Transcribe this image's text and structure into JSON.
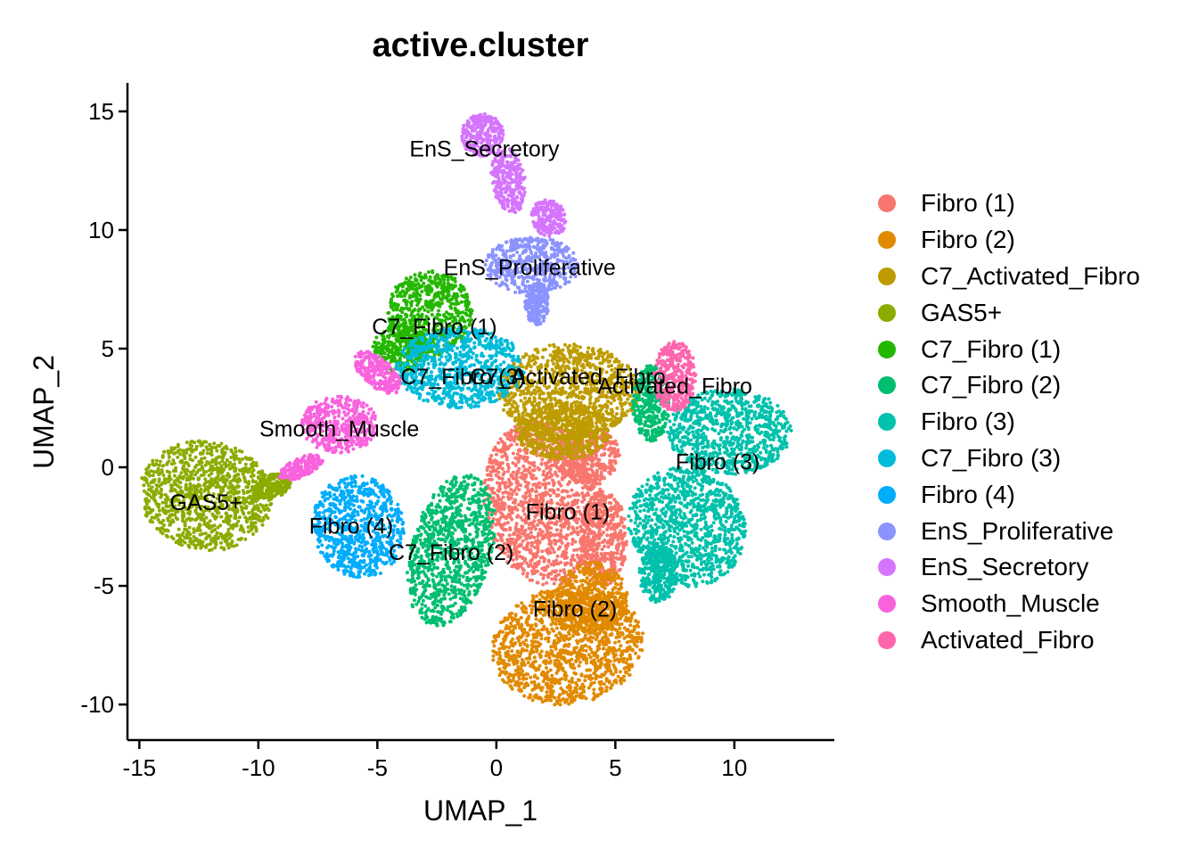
{
  "chart_data": {
    "type": "scatter",
    "title": "active.cluster",
    "xlabel": "UMAP_1",
    "ylabel": "UMAP_2",
    "xlim": [
      -15.5,
      14.2
    ],
    "ylim": [
      -11.5,
      16.2
    ],
    "xticks": [
      -15,
      -10,
      -5,
      0,
      5,
      10
    ],
    "yticks": [
      -10,
      -5,
      0,
      5,
      10,
      15
    ],
    "grid": false,
    "legend_position": "right",
    "series": [
      {
        "name": "Fibro (1)",
        "color": "#F8766D",
        "label_pos": [
          3.0,
          -2.2
        ],
        "regions": [
          [
            2.0,
            -1.5,
            2.5,
            3.5,
            10
          ],
          [
            3.8,
            0.5,
            1.4,
            1.2,
            0
          ],
          [
            4.5,
            -3.0,
            1.0,
            2.0,
            0
          ]
        ]
      },
      {
        "name": "Fibro (2)",
        "color": "#E18A00",
        "label_pos": [
          3.3,
          -6.3
        ],
        "regions": [
          [
            3.0,
            -7.5,
            3.2,
            2.5,
            10
          ],
          [
            4.0,
            -5.5,
            1.5,
            1.5,
            0
          ]
        ]
      },
      {
        "name": "C7_Activated_Fibro",
        "color": "#BE9C00",
        "label_pos": [
          3.0,
          3.5
        ],
        "regions": [
          [
            3.0,
            3.2,
            3.0,
            2.0,
            0
          ],
          [
            2.8,
            1.5,
            2.0,
            1.2,
            0
          ]
        ]
      },
      {
        "name": "GAS5+",
        "color": "#8CAB00",
        "label_pos": [
          -12.2,
          -1.8
        ],
        "regions": [
          [
            -12.2,
            -1.2,
            2.8,
            2.3,
            -10
          ],
          [
            -9.4,
            -0.8,
            0.8,
            0.5,
            20
          ]
        ]
      },
      {
        "name": "C7_Fibro (1)",
        "color": "#24B700",
        "label_pos": [
          -2.6,
          5.6
        ],
        "regions": [
          [
            -2.8,
            6.5,
            1.8,
            1.8,
            0
          ],
          [
            -4.0,
            5.0,
            1.2,
            1.0,
            0
          ]
        ]
      },
      {
        "name": "C7_Fibro (2)",
        "color": "#00BE70",
        "label_pos": [
          -1.9,
          -3.9
        ],
        "regions": [
          [
            -1.9,
            -3.5,
            1.7,
            3.3,
            -15
          ],
          [
            6.5,
            2.7,
            0.8,
            1.6,
            0
          ]
        ]
      },
      {
        "name": "Fibro (3)",
        "color": "#00C1AB",
        "label_pos": [
          9.3,
          -0.1
        ],
        "regions": [
          [
            9.8,
            1.5,
            2.6,
            1.8,
            0
          ],
          [
            8.0,
            -2.5,
            2.4,
            2.6,
            35
          ],
          [
            6.8,
            -4.5,
            0.8,
            1.2,
            0
          ]
        ]
      },
      {
        "name": "C7_Fibro (3)",
        "color": "#00BBDA",
        "label_pos": [
          -1.4,
          3.5
        ],
        "regions": [
          [
            -1.5,
            4.2,
            2.7,
            1.7,
            0
          ]
        ]
      },
      {
        "name": "Fibro (4)",
        "color": "#00ACFC",
        "label_pos": [
          -6.1,
          -2.8
        ],
        "regions": [
          [
            -5.8,
            -2.5,
            1.9,
            2.2,
            15
          ]
        ]
      },
      {
        "name": "EnS_Proliferative",
        "color": "#8B93FF",
        "label_pos": [
          1.4,
          8.1
        ],
        "regions": [
          [
            1.5,
            8.5,
            2.0,
            1.2,
            0
          ],
          [
            1.7,
            6.9,
            0.5,
            0.9,
            0
          ]
        ]
      },
      {
        "name": "EnS_Secretory",
        "color": "#D575FE",
        "label_pos": [
          -0.5,
          13.1
        ],
        "regions": [
          [
            -0.6,
            14.0,
            0.9,
            0.9,
            0
          ],
          [
            0.5,
            12.1,
            0.7,
            1.4,
            10
          ],
          [
            2.2,
            10.5,
            0.7,
            0.8,
            30
          ]
        ]
      },
      {
        "name": "Smooth_Muscle",
        "color": "#F962DD",
        "label_pos": [
          -6.6,
          1.3
        ],
        "regions": [
          [
            -6.6,
            1.8,
            1.6,
            1.2,
            0
          ],
          [
            -5.0,
            4.0,
            1.2,
            0.6,
            -40
          ],
          [
            -8.2,
            0.0,
            1.0,
            0.4,
            25
          ]
        ]
      },
      {
        "name": "Activated_Fibro",
        "color": "#FF65AC",
        "label_pos": [
          7.5,
          3.1
        ],
        "regions": [
          [
            7.5,
            3.8,
            0.9,
            1.5,
            0
          ]
        ]
      }
    ]
  }
}
